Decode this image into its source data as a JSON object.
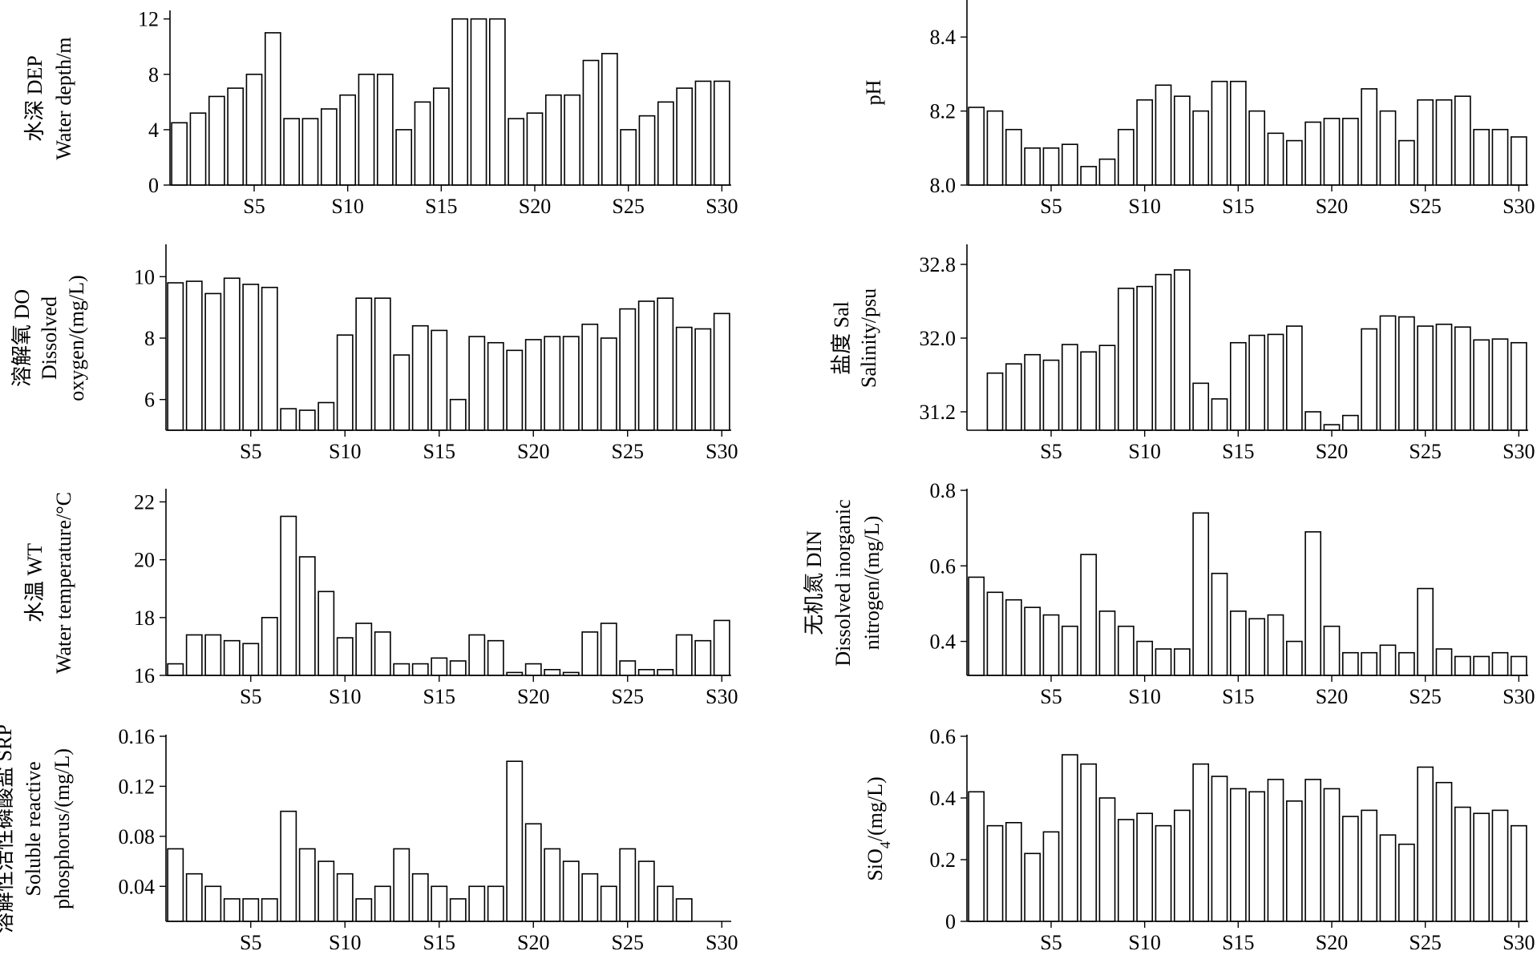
{
  "chart_data": [
    {
      "type": "bar",
      "ylabel_lines": [
        "水深 DEP",
        "Water depth/m"
      ],
      "ylim": [
        0,
        12.5
      ],
      "yticks": [
        0,
        4,
        8,
        12
      ],
      "ytick_labels": [
        "0",
        "4",
        "8",
        "12"
      ],
      "xtick_labels": [
        "S5",
        "S10",
        "S15",
        "S20",
        "S25",
        "S30"
      ],
      "categories": [
        "S1",
        "S2",
        "S3",
        "S4",
        "S5",
        "S6",
        "S7",
        "S8",
        "S9",
        "S10",
        "S11",
        "S12",
        "S13",
        "S14",
        "S15",
        "S16",
        "S17",
        "S18",
        "S19",
        "S20",
        "S21",
        "S22",
        "S23",
        "S24",
        "S25",
        "S26",
        "S27",
        "S28",
        "S29",
        "S30"
      ],
      "values": [
        4.5,
        5.2,
        6.4,
        7.0,
        8.0,
        11.0,
        4.8,
        4.8,
        5.5,
        6.5,
        8.0,
        8.0,
        4.0,
        6.0,
        7.0,
        12.0,
        12.0,
        12.0,
        4.8,
        5.2,
        6.5,
        6.5,
        9.0,
        9.5,
        4.0,
        5.0,
        6.0,
        7.0,
        7.5,
        7.5
      ]
    },
    {
      "type": "bar",
      "ylabel_lines": [
        "pH"
      ],
      "ylim": [
        8.0,
        8.5
      ],
      "yticks": [
        8.0,
        8.2,
        8.4
      ],
      "ytick_labels": [
        "8.0",
        "8.2",
        "8.4"
      ],
      "xtick_labels": [
        "S5",
        "S10",
        "S15",
        "S20",
        "S25",
        "S30"
      ],
      "categories": [
        "S1",
        "S2",
        "S3",
        "S4",
        "S5",
        "S6",
        "S7",
        "S8",
        "S9",
        "S10",
        "S11",
        "S12",
        "S13",
        "S14",
        "S15",
        "S16",
        "S17",
        "S18",
        "S19",
        "S20",
        "S21",
        "S22",
        "S23",
        "S24",
        "S25",
        "S26",
        "S27",
        "S28",
        "S29",
        "S30"
      ],
      "values": [
        8.21,
        8.2,
        8.15,
        8.1,
        8.1,
        8.11,
        8.05,
        8.07,
        8.15,
        8.23,
        8.27,
        8.24,
        8.2,
        8.28,
        8.28,
        8.2,
        8.14,
        8.12,
        8.17,
        8.18,
        8.18,
        8.26,
        8.2,
        8.12,
        8.23,
        8.23,
        8.24,
        8.15,
        8.15,
        8.13
      ]
    },
    {
      "type": "bar",
      "ylabel_lines": [
        "溶解氧 DO",
        "Dissolved",
        "oxygen/(mg/L)"
      ],
      "ylim": [
        5,
        11
      ],
      "yticks": [
        6,
        8,
        10
      ],
      "ytick_labels": [
        "6",
        "8",
        "10"
      ],
      "xtick_labels": [
        "S5",
        "S10",
        "S15",
        "S20",
        "S25",
        "S30"
      ],
      "categories": [
        "S1",
        "S2",
        "S3",
        "S4",
        "S5",
        "S6",
        "S7",
        "S8",
        "S9",
        "S10",
        "S11",
        "S12",
        "S13",
        "S14",
        "S15",
        "S16",
        "S17",
        "S18",
        "S19",
        "S20",
        "S21",
        "S22",
        "S23",
        "S24",
        "S25",
        "S26",
        "S27",
        "S28",
        "S29",
        "S30"
      ],
      "values": [
        9.8,
        9.85,
        9.45,
        9.95,
        9.75,
        9.65,
        5.7,
        5.65,
        5.9,
        8.1,
        9.3,
        9.3,
        7.45,
        8.4,
        8.25,
        6.0,
        8.05,
        7.85,
        7.6,
        7.95,
        8.05,
        8.05,
        8.45,
        8.0,
        8.95,
        9.2,
        9.3,
        8.35,
        8.3,
        8.8
      ]
    },
    {
      "type": "bar",
      "ylabel_lines": [
        "盐度 Sal",
        "Salinity/psu"
      ],
      "ylim": [
        31.0,
        33.0
      ],
      "yticks": [
        31.2,
        32.0,
        32.8
      ],
      "ytick_labels": [
        "31.2",
        "32.0",
        "32.8"
      ],
      "xtick_labels": [
        "S5",
        "S10",
        "S15",
        "S20",
        "S25",
        "S30"
      ],
      "categories": [
        "S1",
        "S2",
        "S3",
        "S4",
        "S5",
        "S6",
        "S7",
        "S8",
        "S9",
        "S10",
        "S11",
        "S12",
        "S13",
        "S14",
        "S15",
        "S16",
        "S17",
        "S18",
        "S19",
        "S20",
        "S21",
        "S22",
        "S23",
        "S24",
        "S25",
        "S26",
        "S27",
        "S28",
        "S29",
        "S30"
      ],
      "values": [
        31.0,
        31.62,
        31.72,
        31.82,
        31.76,
        31.93,
        31.85,
        31.92,
        32.54,
        32.56,
        32.69,
        32.74,
        31.51,
        31.34,
        31.95,
        32.03,
        32.04,
        32.13,
        31.2,
        31.06,
        31.16,
        32.1,
        32.24,
        32.23,
        32.13,
        32.15,
        32.12,
        31.98,
        31.99,
        31.95
      ]
    },
    {
      "type": "bar",
      "ylabel_lines": [
        "水温 WT",
        "Water temperature/°C"
      ],
      "ylim": [
        16,
        22.4
      ],
      "yticks": [
        16,
        18,
        20,
        22
      ],
      "ytick_labels": [
        "16",
        "18",
        "20",
        "22"
      ],
      "xtick_labels": [
        "S5",
        "S10",
        "S15",
        "S20",
        "S25",
        "S30"
      ],
      "categories": [
        "S1",
        "S2",
        "S3",
        "S4",
        "S5",
        "S6",
        "S7",
        "S8",
        "S9",
        "S10",
        "S11",
        "S12",
        "S13",
        "S14",
        "S15",
        "S16",
        "S17",
        "S18",
        "S19",
        "S20",
        "S21",
        "S22",
        "S23",
        "S24",
        "S25",
        "S26",
        "S27",
        "S28",
        "S29",
        "S30"
      ],
      "values": [
        16.4,
        17.4,
        17.4,
        17.2,
        17.1,
        18.0,
        21.5,
        20.1,
        18.9,
        17.3,
        17.8,
        17.5,
        16.4,
        16.4,
        16.6,
        16.5,
        17.4,
        17.2,
        16.1,
        16.4,
        16.2,
        16.1,
        17.5,
        17.8,
        16.5,
        16.2,
        16.2,
        17.4,
        17.2,
        17.9
      ]
    },
    {
      "type": "bar",
      "ylabel_lines": [
        "无机氮 DIN",
        "Dissolved inorganic",
        "nitrogen/(mg/L)"
      ],
      "ylim": [
        0.31,
        0.8
      ],
      "yticks": [
        0.4,
        0.6,
        0.8
      ],
      "ytick_labels": [
        "0.4",
        "0.6",
        "0.8"
      ],
      "xtick_labels": [
        "S5",
        "S10",
        "S15",
        "S20",
        "S25",
        "S30"
      ],
      "categories": [
        "S1",
        "S2",
        "S3",
        "S4",
        "S5",
        "S6",
        "S7",
        "S8",
        "S9",
        "S10",
        "S11",
        "S12",
        "S13",
        "S14",
        "S15",
        "S16",
        "S17",
        "S18",
        "S19",
        "S20",
        "S21",
        "S22",
        "S23",
        "S24",
        "S25",
        "S26",
        "S27",
        "S28",
        "S29",
        "S30"
      ],
      "values": [
        0.57,
        0.53,
        0.51,
        0.49,
        0.47,
        0.44,
        0.63,
        0.48,
        0.44,
        0.4,
        0.38,
        0.38,
        0.74,
        0.58,
        0.48,
        0.46,
        0.47,
        0.4,
        0.69,
        0.44,
        0.37,
        0.37,
        0.39,
        0.37,
        0.54,
        0.38,
        0.36,
        0.36,
        0.37,
        0.36
      ]
    },
    {
      "type": "bar",
      "ylabel_lines": [
        "溶解性活性磷酸盐 SRP",
        "Soluble reactive",
        "phosphorus/(mg/L)"
      ],
      "ylim": [
        0.012,
        0.16
      ],
      "yticks": [
        0.04,
        0.08,
        0.12,
        0.16
      ],
      "ytick_labels": [
        "0.04",
        "0.08",
        "0.12",
        "0.16"
      ],
      "xtick_labels": [
        "S5",
        "S10",
        "S15",
        "S20",
        "S25",
        "S30"
      ],
      "categories": [
        "S1",
        "S2",
        "S3",
        "S4",
        "S5",
        "S6",
        "S7",
        "S8",
        "S9",
        "S10",
        "S11",
        "S12",
        "S13",
        "S14",
        "S15",
        "S16",
        "S17",
        "S18",
        "S19",
        "S20",
        "S21",
        "S22",
        "S23",
        "S24",
        "S25",
        "S26",
        "S27",
        "S28",
        "S29",
        "S30"
      ],
      "values": [
        0.07,
        0.05,
        0.04,
        0.03,
        0.03,
        0.03,
        0.1,
        0.07,
        0.06,
        0.05,
        0.03,
        0.04,
        0.07,
        0.05,
        0.04,
        0.03,
        0.04,
        0.04,
        0.14,
        0.09,
        0.07,
        0.06,
        0.05,
        0.04,
        0.07,
        0.06,
        0.04,
        0.03,
        0.0,
        0.0
      ]
    },
    {
      "type": "bar",
      "ylabel_lines": [
        "SiO4/(mg/L)"
      ],
      "ylim": [
        0,
        0.6
      ],
      "yticks": [
        0,
        0.2,
        0.4,
        0.6
      ],
      "ytick_labels": [
        "0",
        "0.2",
        "0.4",
        "0.6"
      ],
      "xtick_labels": [
        "S5",
        "S10",
        "S15",
        "S20",
        "S25",
        "S30"
      ],
      "categories": [
        "S1",
        "S2",
        "S3",
        "S4",
        "S5",
        "S6",
        "S7",
        "S8",
        "S9",
        "S10",
        "S11",
        "S12",
        "S13",
        "S14",
        "S15",
        "S16",
        "S17",
        "S18",
        "S19",
        "S20",
        "S21",
        "S22",
        "S23",
        "S24",
        "S25",
        "S26",
        "S27",
        "S28",
        "S29",
        "S30"
      ],
      "values": [
        0.42,
        0.31,
        0.32,
        0.22,
        0.29,
        0.54,
        0.51,
        0.4,
        0.33,
        0.35,
        0.31,
        0.36,
        0.51,
        0.47,
        0.43,
        0.42,
        0.46,
        0.39,
        0.46,
        0.43,
        0.34,
        0.36,
        0.28,
        0.25,
        0.5,
        0.45,
        0.37,
        0.35,
        0.36,
        0.31
      ]
    }
  ]
}
